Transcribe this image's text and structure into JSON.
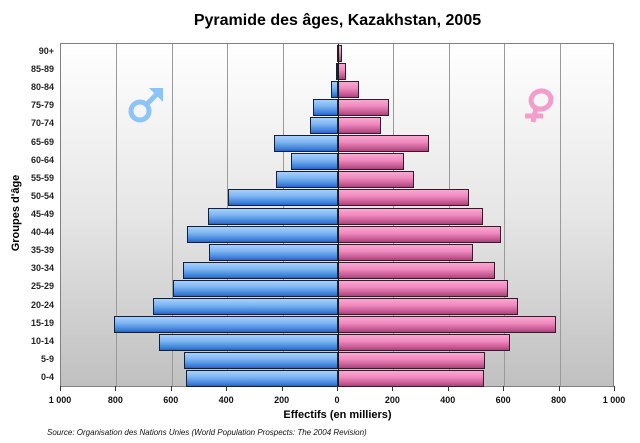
{
  "chart_data": {
    "type": "bar",
    "orientation": "horizontal",
    "title": "Pyramide des âges, Kazakhstan, 2005",
    "xlabel": "Effectifs (en milliers)",
    "ylabel": "Groupes d'âge",
    "xlim": [
      -1000,
      1000
    ],
    "xticks": [
      "1 000",
      "800",
      "600",
      "400",
      "200",
      "0",
      "200",
      "400",
      "600",
      "800",
      "1 000"
    ],
    "grid": true,
    "legend": [
      {
        "name": "Hommes",
        "symbol": "♂",
        "color": "#8cc4f8"
      },
      {
        "name": "Femmes",
        "symbol": "♀",
        "color": "#f49ccc"
      }
    ],
    "categories": [
      "90+",
      "85-89",
      "80-84",
      "75-79",
      "70-74",
      "65-69",
      "60-64",
      "55-59",
      "50-54",
      "45-49",
      "40-44",
      "35-39",
      "30-34",
      "25-29",
      "20-24",
      "15-19",
      "10-14",
      "5-9",
      "0-4"
    ],
    "series": [
      {
        "name": "Hommes",
        "color": "#4a8ae0",
        "values": [
          3,
          9,
          25,
          90,
          100,
          232,
          169,
          224,
          398,
          468,
          545,
          465,
          558,
          597,
          667,
          809,
          646,
          556,
          549
        ]
      },
      {
        "name": "Femmes",
        "color": "#e27fb4",
        "values": [
          15,
          30,
          75,
          185,
          155,
          330,
          237,
          274,
          474,
          524,
          590,
          487,
          566,
          613,
          649,
          786,
          620,
          532,
          527
        ]
      }
    ],
    "source": "Source: Organisation des Nations Unies (World Population Prospects: The 2004 Revision)"
  }
}
